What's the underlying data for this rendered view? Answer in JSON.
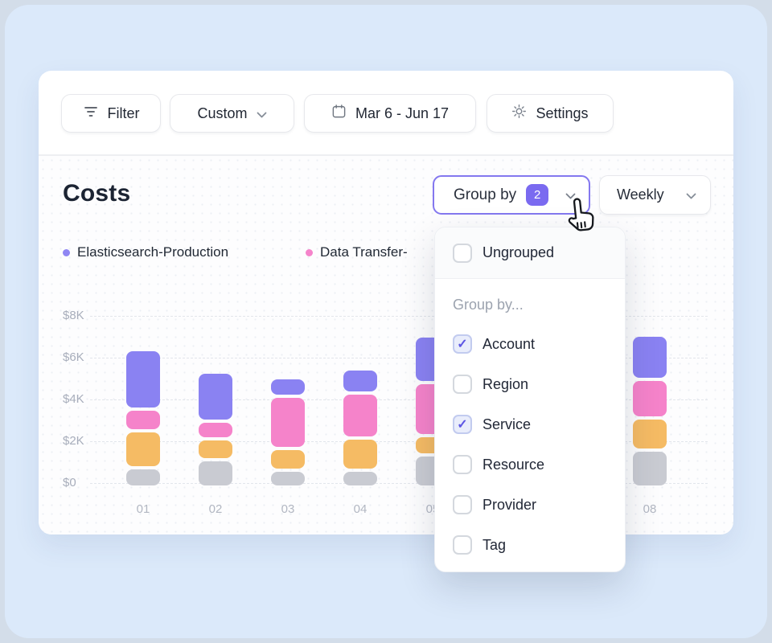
{
  "toolbar": {
    "filter": {
      "label": "Filter",
      "icon": "filter-lines-icon"
    },
    "custom": {
      "label": "Custom",
      "icon": "chevron-down-icon"
    },
    "date_range": {
      "label": "Mar 6 - Jun 17",
      "icon": "calendar-icon"
    },
    "settings": {
      "label": "Settings",
      "icon": "gear-icon"
    }
  },
  "header": {
    "title": "Costs",
    "group_by": {
      "label": "Group by",
      "badge_count": "2"
    },
    "interval": {
      "label": "Weekly"
    }
  },
  "legend": [
    {
      "label": "Elasticsearch-Production",
      "color": "#8F86F3"
    },
    {
      "label": "Data Transfer-",
      "color": "#F584CB"
    }
  ],
  "dropdown": {
    "ungrouped": {
      "label": "Ungrouped",
      "checked": false
    },
    "section_label": "Group by...",
    "options": [
      {
        "label": "Account",
        "checked": true
      },
      {
        "label": "Region",
        "checked": false
      },
      {
        "label": "Service",
        "checked": true
      },
      {
        "label": "Resource",
        "checked": false
      },
      {
        "label": "Provider",
        "checked": false
      },
      {
        "label": "Tag",
        "checked": false
      }
    ]
  },
  "chart_data": {
    "type": "bar",
    "subtype": "stacked-bar",
    "title": "Costs",
    "unit": "$K",
    "stack_order": "bottom-to-top",
    "categories": [
      "01",
      "02",
      "03",
      "04",
      "05",
      null,
      null,
      "08"
    ],
    "series": [
      {
        "name": null,
        "color": "#C9CBD2",
        "values": [
          0.75,
          1.15,
          0.65,
          0.65,
          1.4,
          null,
          null,
          1.6
        ]
      },
      {
        "name": null,
        "color": "#F5BB64",
        "values": [
          1.65,
          0.85,
          0.9,
          1.4,
          0.75,
          null,
          null,
          1.4
        ]
      },
      {
        "name": "Data Transfer-",
        "color": "#F583CA",
        "values": [
          0.85,
          0.7,
          2.35,
          2.0,
          2.4,
          null,
          null,
          1.7
        ]
      },
      {
        "name": "Elasticsearch-Production",
        "color": "#8A82F2",
        "values": [
          2.7,
          2.2,
          0.7,
          1.0,
          2.05,
          null,
          null,
          1.95
        ]
      }
    ],
    "yticks": [
      {
        "label": "$8K",
        "value": 8
      },
      {
        "label": "$6K",
        "value": 6
      },
      {
        "label": "$4K",
        "value": 4
      },
      {
        "label": "$2K",
        "value": 2
      },
      {
        "label": "$0",
        "value": 0
      }
    ],
    "ylim": [
      0,
      8
    ],
    "grid": "dashed-horizontal",
    "legend_position": "top-left",
    "note": "Bars 06, 07 and most of 05 are occluded by the open Group-by dropdown"
  },
  "colors": {
    "accent_purple": "#7A6AF0",
    "group_by_border": "#8478EF",
    "page_bg": "#DBE9FA",
    "card_bg": "#FFFFFF",
    "check_color": "#5D56E4"
  }
}
